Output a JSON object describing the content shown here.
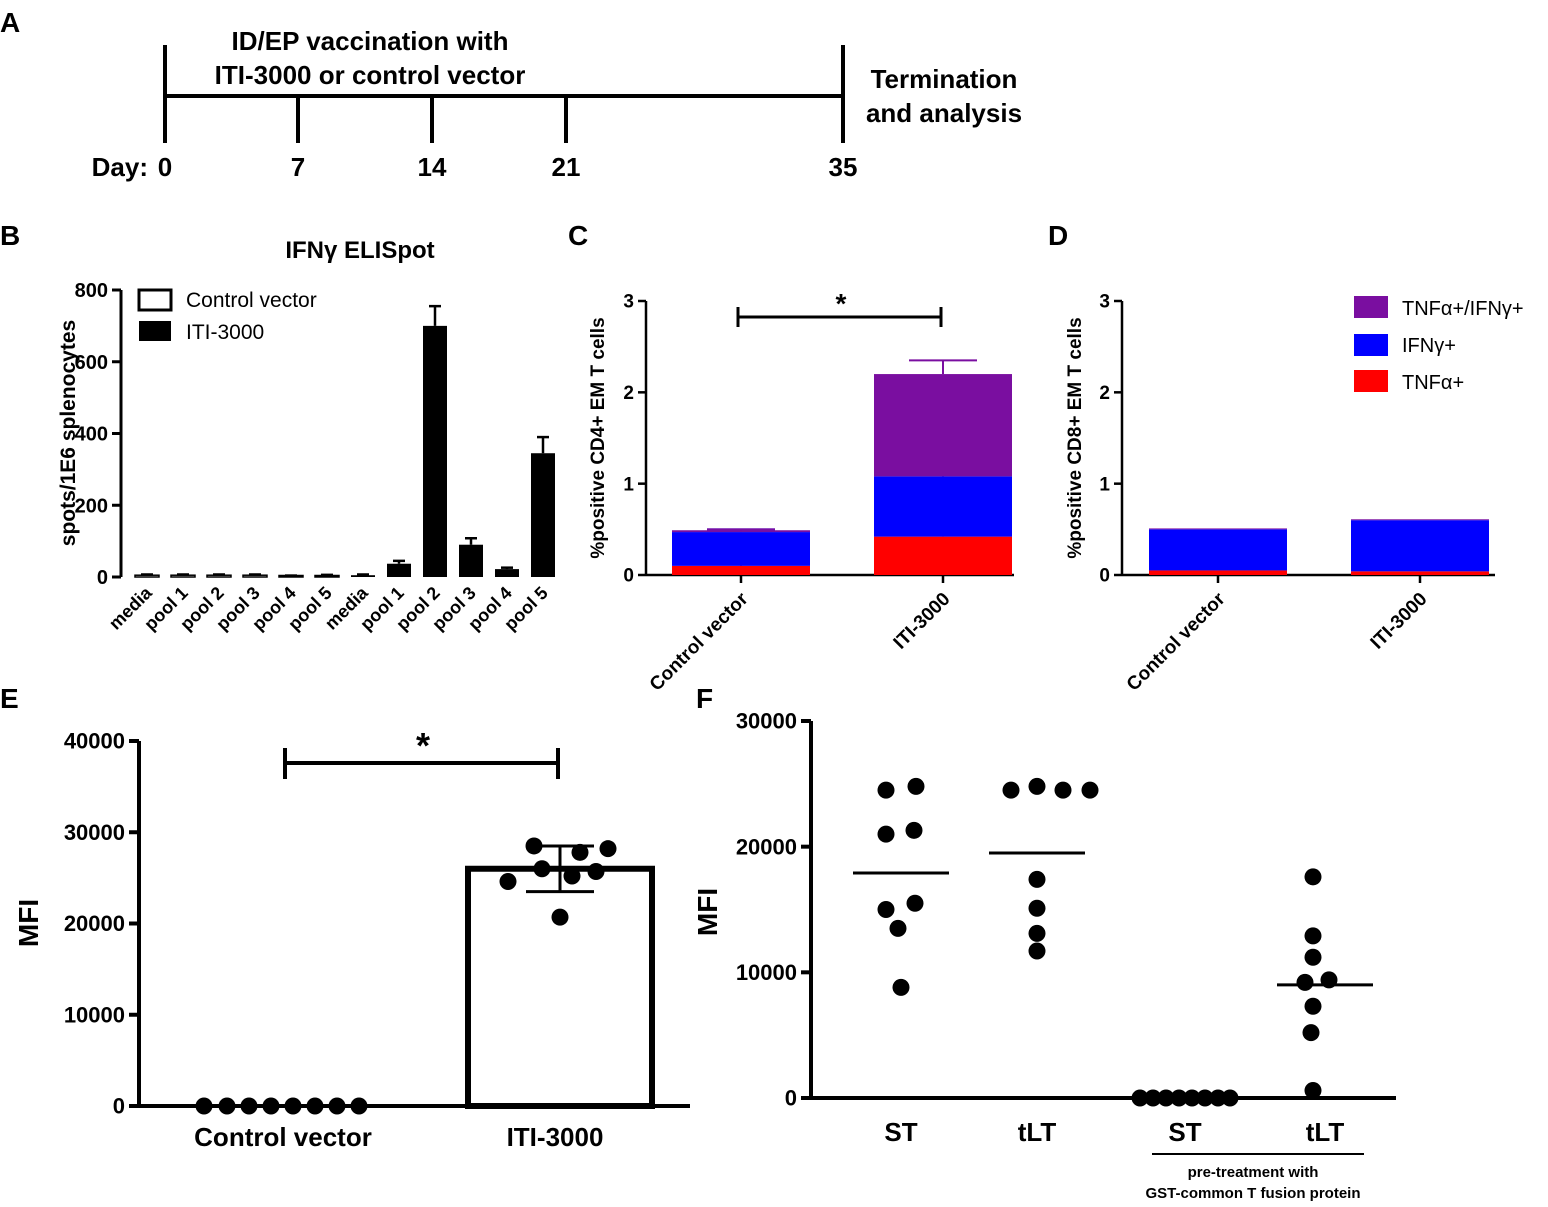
{
  "panel_letters": {
    "a": "A",
    "b": "B",
    "c": "C",
    "d": "D",
    "e": "E",
    "f": "F"
  },
  "colors": {
    "purple": "#7a0ea0",
    "blue": "#0000ff",
    "red": "#ff0000",
    "black": "#000000",
    "white": "#ffffff"
  },
  "timeline": {
    "title_line1": "ID/EP vaccination with",
    "title_line2": "ITI-3000 or control vector",
    "end_line1": "Termination",
    "end_line2": "and analysis",
    "day_label": "Day:",
    "days": [
      "0",
      "7",
      "14",
      "21",
      "35"
    ]
  },
  "chart_data": [
    {
      "panel": "B",
      "type": "bar",
      "title": "IFNγ ELISpot",
      "ylabel": "spots/1E6 splenocytes",
      "ylim": [
        0,
        800
      ],
      "yticks": [
        "0",
        "200",
        "400",
        "600",
        "800"
      ],
      "categories": [
        "media",
        "pool 1",
        "pool 2",
        "pool 3",
        "pool 4",
        "pool 5"
      ],
      "series": [
        {
          "name": "Control vector",
          "values": [
            5,
            5,
            5,
            5,
            3,
            4
          ],
          "errors": [
            2,
            2,
            2,
            2,
            1,
            2
          ]
        },
        {
          "name": "ITI-3000",
          "values": [
            5,
            37,
            700,
            90,
            22,
            345
          ],
          "errors": [
            2,
            8,
            55,
            18,
            4,
            45
          ]
        }
      ]
    },
    {
      "panel": "C",
      "type": "bar",
      "stacked": true,
      "ylabel": "%positive CD4+ EM T cells",
      "ylim": [
        0,
        3
      ],
      "yticks": [
        "0",
        "1",
        "2",
        "3"
      ],
      "categories": [
        "Control vector",
        "ITI-3000"
      ],
      "series": [
        {
          "name": "TNFα+",
          "values": [
            0.1,
            0.42
          ],
          "errors": [
            0.02,
            0.05
          ]
        },
        {
          "name": "IFNγ+",
          "values": [
            0.37,
            0.66
          ],
          "errors": [
            0.03,
            0.05
          ]
        },
        {
          "name": "TNFα+/IFNγ+",
          "values": [
            0.02,
            1.12
          ],
          "errors": [
            0.01,
            0.15
          ]
        }
      ],
      "significance": "*"
    },
    {
      "panel": "D",
      "type": "bar",
      "stacked": true,
      "ylabel": "%positive CD8+ EM T cells",
      "ylim": [
        0,
        3
      ],
      "yticks": [
        "0",
        "1",
        "2",
        "3"
      ],
      "categories": [
        "Control vector",
        "ITI-3000"
      ],
      "series": [
        {
          "name": "TNFα+",
          "values": [
            0.05,
            0.04
          ]
        },
        {
          "name": "IFNγ+",
          "values": [
            0.45,
            0.56
          ]
        },
        {
          "name": "TNFα+/IFNγ+",
          "values": [
            0.01,
            0.01
          ]
        }
      ],
      "legend": [
        "TNFα+/IFNγ+",
        "IFNγ+",
        "TNFα+"
      ],
      "legend_position": "top-right"
    },
    {
      "panel": "E",
      "type": "bar",
      "ylabel": "MFI",
      "ylim": [
        0,
        40000
      ],
      "yticks": [
        "0",
        "10000",
        "20000",
        "30000",
        "40000"
      ],
      "categories": [
        "Control vector",
        "ITI-3000"
      ],
      "values": [
        0,
        26000
      ],
      "errors": [
        0,
        2500
      ],
      "points": [
        [
          0,
          0,
          0,
          0,
          0,
          0,
          0,
          0
        ],
        [
          20700,
          24600,
          25200,
          25700,
          26000,
          27800,
          28200,
          28500
        ]
      ],
      "significance": "*"
    },
    {
      "panel": "F",
      "type": "scatter",
      "ylabel": "MFI",
      "ylim": [
        0,
        30000
      ],
      "yticks": [
        "0",
        "10000",
        "20000",
        "30000"
      ],
      "categories": [
        "ST",
        "tLT",
        "ST",
        "tLT"
      ],
      "points": [
        [
          24500,
          24800,
          21000,
          21300,
          15000,
          15500,
          13500,
          8800
        ],
        [
          24500,
          24800,
          24500,
          24500,
          17400,
          15100,
          13100,
          11700
        ],
        [
          0,
          0,
          0,
          0,
          0,
          0,
          0,
          0
        ],
        [
          17600,
          12900,
          11200,
          9400,
          9200,
          7300,
          5200,
          600
        ]
      ],
      "means": [
        17900,
        19500,
        0,
        9000
      ],
      "group_note_line1": "pre-treatment with",
      "group_note_line2": "GST-common T fusion protein"
    }
  ]
}
